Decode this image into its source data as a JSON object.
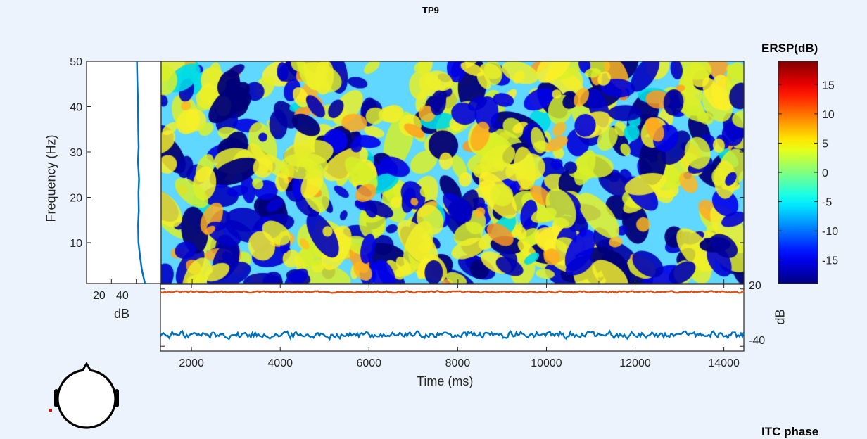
{
  "figure": {
    "title": "TP9",
    "colorbar_title": "ERSP(dB)",
    "lower_right_title": "ITC phase"
  },
  "chart_data": [
    {
      "type": "heatmap",
      "name": "ersp",
      "xlabel": "Time (ms)",
      "ylabel": "Frequency (Hz)",
      "xlim": [
        1300,
        14450
      ],
      "ylim": [
        1,
        50
      ],
      "xticks": [
        2000,
        4000,
        6000,
        8000,
        10000,
        12000,
        14000
      ],
      "yticks": [
        10,
        20,
        30,
        40,
        50
      ],
      "clim": [
        -19,
        19
      ],
      "colormap": "jet",
      "colorbar_ticks": [
        15,
        10,
        5,
        0,
        -5,
        -10,
        -15
      ],
      "colorbar_label": "ERSP(dB)"
    },
    {
      "type": "line",
      "name": "baseline-spectrum",
      "xlabel": "dB",
      "xticks": [
        20,
        40
      ],
      "xlim": [
        0,
        60
      ],
      "ylim": [
        1,
        50
      ],
      "series": [
        {
          "color": "#0072bd",
          "x": [
            40.5,
            40.8,
            41.2,
            41.5,
            41.6,
            41.9,
            41.4,
            42.2,
            41.8,
            42.0,
            41.5,
            41.8,
            43.0,
            44.5,
            47.0
          ],
          "y": [
            50,
            46,
            42,
            38,
            35,
            31,
            28,
            24,
            21,
            17,
            14,
            10,
            7,
            4,
            1
          ]
        }
      ]
    },
    {
      "type": "line",
      "name": "ersp-envelope",
      "xlabel": "Time (ms)",
      "ylabel": "dB",
      "xlim": [
        1300,
        14450
      ],
      "ylim": [
        -45,
        25
      ],
      "yticks": [
        20,
        -40
      ],
      "series": [
        {
          "color": "#d95319",
          "mean": 17,
          "amplitude": 1.2
        },
        {
          "color": "#0072bd",
          "mean": -28,
          "amplitude": 4.5
        }
      ]
    }
  ],
  "icons": {
    "head": "scalp-head-icon",
    "electrode": "electrode-marker-icon"
  },
  "colors": {
    "background": "#edf3fc",
    "orange_trace": "#d95319",
    "blue_trace": "#0072bd",
    "electrode": "#ff0000"
  }
}
